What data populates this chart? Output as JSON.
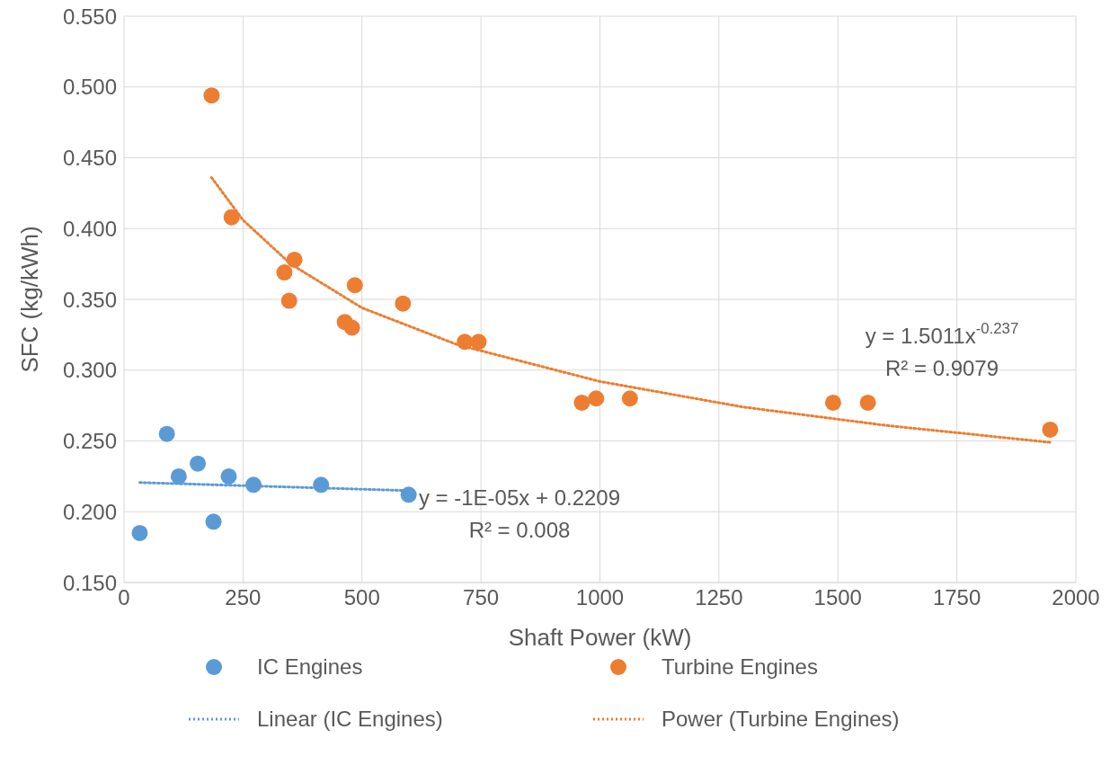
{
  "chart_data": {
    "type": "scatter",
    "xlabel": "Shaft Power (kW)",
    "ylabel": "SFC (kg/kWh)",
    "xlim": [
      0,
      2000
    ],
    "xticks": [
      0,
      250,
      500,
      750,
      1000,
      1250,
      1500,
      1750,
      2000
    ],
    "ylim": [
      0.15,
      0.55
    ],
    "yticks": [
      {
        "value": 0.15,
        "label": "0.150"
      },
      {
        "value": 0.2,
        "label": "0.200"
      },
      {
        "value": 0.25,
        "label": "0.250"
      },
      {
        "value": 0.3,
        "label": "0.300"
      },
      {
        "value": 0.35,
        "label": "0.350"
      },
      {
        "value": 0.4,
        "label": "0.400"
      },
      {
        "value": 0.45,
        "label": "0.450"
      },
      {
        "value": 0.5,
        "label": "0.500"
      },
      {
        "value": 0.55,
        "label": "0.550"
      }
    ],
    "grid": true,
    "legend": "bottom",
    "marker": "circle",
    "series": [
      {
        "name": "IC Engines",
        "type": "scatter",
        "color": "#5b9bd5",
        "x": [
          33,
          90,
          115,
          155,
          188,
          220,
          272,
          414,
          598
        ],
        "values": [
          0.185,
          0.255,
          0.225,
          0.234,
          0.193,
          0.225,
          0.219,
          0.219,
          0.212
        ]
      },
      {
        "name": "Turbine Engines",
        "type": "scatter",
        "color": "#ed7d31",
        "x": [
          184,
          226,
          337,
          358,
          347,
          464,
          479,
          485,
          586,
          716,
          745,
          962,
          992,
          1063,
          1490,
          1563,
          1946
        ],
        "values": [
          0.494,
          0.408,
          0.369,
          0.378,
          0.349,
          0.334,
          0.33,
          0.36,
          0.347,
          0.32,
          0.32,
          0.277,
          0.28,
          0.28,
          0.277,
          0.277,
          0.258
        ]
      },
      {
        "name": "Linear (IC Engines)",
        "type": "line",
        "marker": "none",
        "line_style": "dotted",
        "color": "#5b9bd5",
        "x": [
          33,
          598
        ],
        "values": [
          0.2206,
          0.2149
        ]
      },
      {
        "name": "Power (Turbine Engines)",
        "type": "line",
        "marker": "none",
        "line_style": "dotted",
        "color": "#ed7d31",
        "x": [
          184,
          250,
          350,
          500,
          700,
          1000,
          1300,
          1600,
          1946
        ],
        "values": [
          0.436,
          0.406,
          0.375,
          0.344,
          0.318,
          0.292,
          0.274,
          0.261,
          0.249
        ]
      }
    ],
    "annotations": [
      "y = -1E-05x + 0.2209",
      "R² = 0.008",
      "y = 1.5011x$^{-0.237}$",
      "R² = 0.9079"
    ]
  }
}
